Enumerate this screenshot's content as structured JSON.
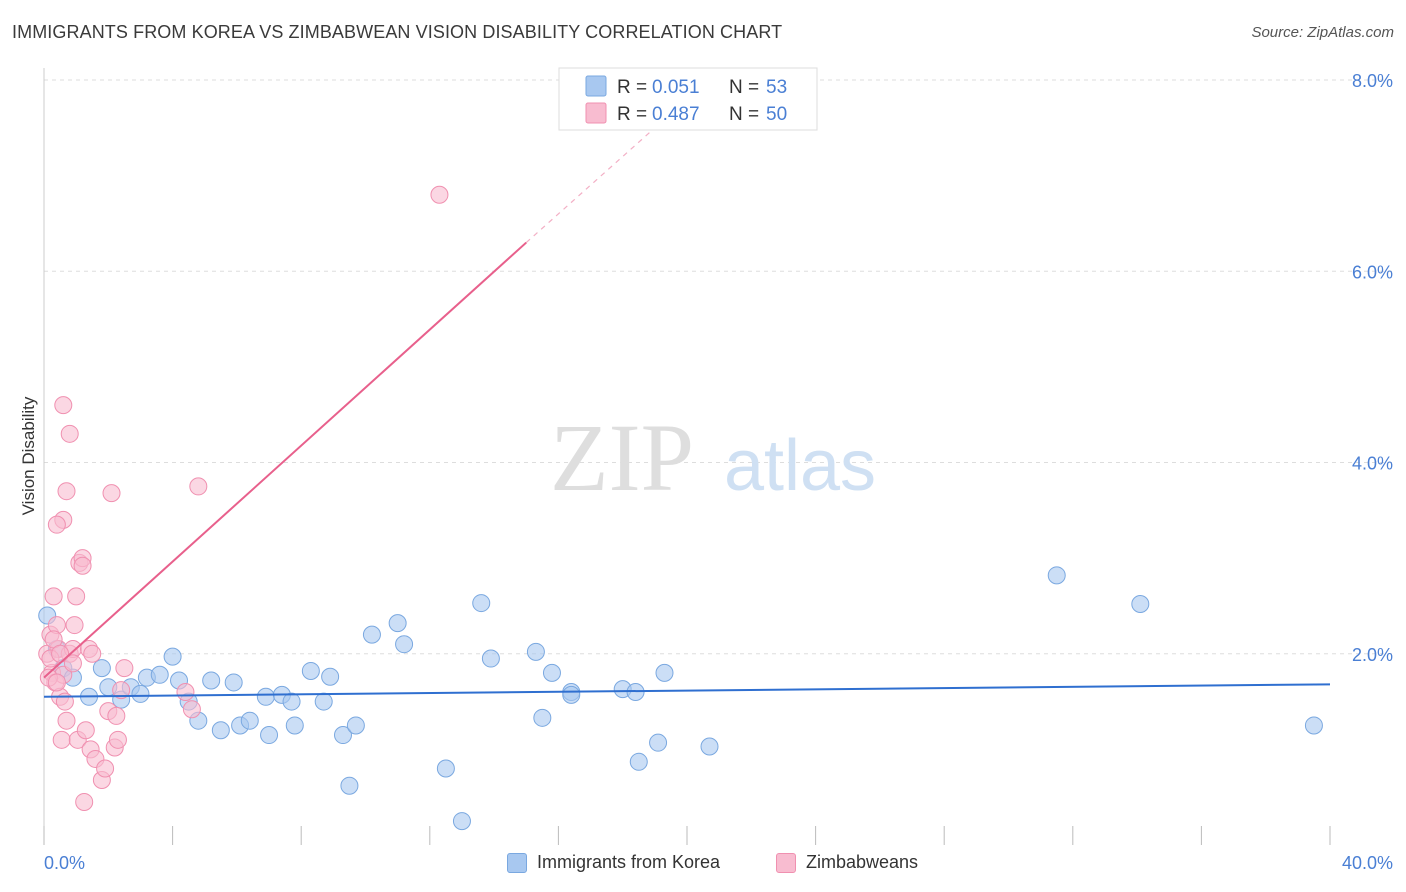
{
  "title": "IMMIGRANTS FROM KOREA VS ZIMBABWEAN VISION DISABILITY CORRELATION CHART",
  "source": "Source: ZipAtlas.com",
  "watermark": {
    "zip": "ZIP",
    "atlas": "atlas"
  },
  "colors": {
    "korea_fill": "#a8c8f0",
    "korea_stroke": "#7aa8e0",
    "korea_line": "#2f6fd0",
    "zim_fill": "#f8bcd0",
    "zim_stroke": "#f090b0",
    "zim_line": "#e8608c",
    "tick_label": "#4a7fd4",
    "grid": "#dddddd"
  },
  "legend_box": {
    "rows": [
      {
        "r_label": "R = ",
        "r_value": "0.051",
        "n_label": "N = ",
        "n_value": "53"
      },
      {
        "r_label": "R = ",
        "r_value": "0.487",
        "n_label": "N = ",
        "n_value": "50"
      }
    ]
  },
  "bottom_legend": {
    "korea": "Immigrants from Korea",
    "zim": "Zimbabweans"
  },
  "chart_data": {
    "type": "scatter",
    "xlabel": "",
    "ylabel": "Vision Disability",
    "xlim": [
      0,
      40
    ],
    "ylim": [
      0,
      8
    ],
    "x_tick_labels": [
      "0.0%",
      "40.0%"
    ],
    "y_ticks": [
      2,
      4,
      6,
      8
    ],
    "y_tick_labels": [
      "2.0%",
      "4.0%",
      "6.0%",
      "8.0%"
    ],
    "grid": true,
    "legend_position": "top-center",
    "series": [
      {
        "name": "Immigrants from Korea",
        "r": 0.051,
        "n": 53,
        "trend": {
          "x": [
            0,
            40
          ],
          "y": [
            1.55,
            1.68
          ]
        },
        "points": [
          [
            0.1,
            2.4
          ],
          [
            0.4,
            2.05
          ],
          [
            0.6,
            1.85
          ],
          [
            0.9,
            1.75
          ],
          [
            1.4,
            1.55
          ],
          [
            1.8,
            1.85
          ],
          [
            2.0,
            1.65
          ],
          [
            2.4,
            1.52
          ],
          [
            2.7,
            1.65
          ],
          [
            3.0,
            1.58
          ],
          [
            3.2,
            1.75
          ],
          [
            3.6,
            1.78
          ],
          [
            4.0,
            1.97
          ],
          [
            4.2,
            1.72
          ],
          [
            4.5,
            1.5
          ],
          [
            4.8,
            1.3
          ],
          [
            5.2,
            1.72
          ],
          [
            5.5,
            1.2
          ],
          [
            5.9,
            1.7
          ],
          [
            6.1,
            1.25
          ],
          [
            6.4,
            1.3
          ],
          [
            6.9,
            1.55
          ],
          [
            7.0,
            1.15
          ],
          [
            7.4,
            1.57
          ],
          [
            7.7,
            1.5
          ],
          [
            7.8,
            1.25
          ],
          [
            8.3,
            1.82
          ],
          [
            8.7,
            1.5
          ],
          [
            8.9,
            1.76
          ],
          [
            9.3,
            1.15
          ],
          [
            9.5,
            0.62
          ],
          [
            9.7,
            1.25
          ],
          [
            10.2,
            2.2
          ],
          [
            11.0,
            2.32
          ],
          [
            11.2,
            2.1
          ],
          [
            12.5,
            0.8
          ],
          [
            13.0,
            0.25
          ],
          [
            13.6,
            2.53
          ],
          [
            13.9,
            1.95
          ],
          [
            15.3,
            2.02
          ],
          [
            15.5,
            1.33
          ],
          [
            15.8,
            1.8
          ],
          [
            16.4,
            1.6
          ],
          [
            16.4,
            1.57
          ],
          [
            18.0,
            1.63
          ],
          [
            18.4,
            1.6
          ],
          [
            18.5,
            0.87
          ],
          [
            19.1,
            1.07
          ],
          [
            19.3,
            1.8
          ],
          [
            20.7,
            1.03
          ],
          [
            31.5,
            2.82
          ],
          [
            34.1,
            2.52
          ],
          [
            39.5,
            1.25
          ]
        ]
      },
      {
        "name": "Zimbabweans",
        "r": 0.487,
        "n": 50,
        "trend": {
          "x": [
            0,
            15
          ],
          "y": [
            1.75,
            6.3
          ]
        },
        "trend_dashed": {
          "x": [
            15,
            19
          ],
          "y": [
            6.3,
            7.5
          ]
        },
        "points": [
          [
            0.1,
            2.0
          ],
          [
            0.2,
            2.2
          ],
          [
            0.25,
            1.8
          ],
          [
            0.3,
            2.6
          ],
          [
            0.35,
            1.7
          ],
          [
            0.4,
            2.3
          ],
          [
            0.45,
            2.05
          ],
          [
            0.5,
            1.55
          ],
          [
            0.55,
            1.1
          ],
          [
            0.6,
            1.78
          ],
          [
            0.65,
            1.5
          ],
          [
            0.7,
            1.3
          ],
          [
            0.8,
            2.0
          ],
          [
            0.9,
            2.05
          ],
          [
            0.95,
            2.3
          ],
          [
            1.0,
            2.6
          ],
          [
            1.05,
            1.1
          ],
          [
            1.1,
            2.95
          ],
          [
            1.2,
            3.0
          ],
          [
            1.25,
            0.45
          ],
          [
            1.3,
            1.2
          ],
          [
            1.4,
            2.05
          ],
          [
            1.45,
            1.0
          ],
          [
            1.6,
            0.9
          ],
          [
            1.8,
            0.68
          ],
          [
            1.9,
            0.8
          ],
          [
            2.0,
            1.4
          ],
          [
            2.1,
            3.68
          ],
          [
            2.2,
            1.02
          ],
          [
            2.25,
            1.35
          ],
          [
            2.3,
            1.1
          ],
          [
            2.4,
            1.62
          ],
          [
            2.5,
            1.85
          ],
          [
            0.6,
            4.6
          ],
          [
            0.8,
            4.3
          ],
          [
            0.7,
            3.7
          ],
          [
            0.6,
            3.4
          ],
          [
            0.4,
            3.35
          ],
          [
            1.2,
            2.92
          ],
          [
            4.4,
            1.6
          ],
          [
            4.6,
            1.42
          ],
          [
            4.8,
            3.75
          ],
          [
            12.3,
            6.8
          ],
          [
            0.15,
            1.75
          ],
          [
            0.2,
            1.95
          ],
          [
            0.3,
            2.15
          ],
          [
            0.4,
            1.7
          ],
          [
            0.5,
            2.0
          ],
          [
            0.9,
            1.9
          ],
          [
            1.5,
            2.0
          ]
        ]
      }
    ]
  }
}
